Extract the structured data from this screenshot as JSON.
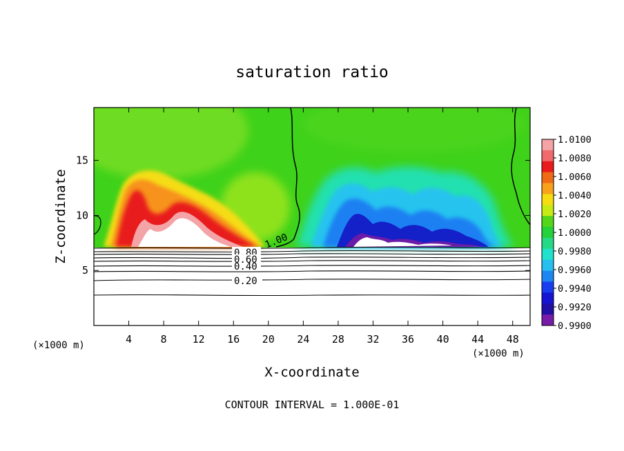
{
  "chart_data": {
    "type": "heatmap",
    "title": "saturation ratio",
    "xlabel": "X-coordinate",
    "ylabel": "Z-coordinate",
    "x_unit_left": "(×1000 m)",
    "x_unit_right": "(×1000 m)",
    "xlim": [
      0,
      50
    ],
    "ylim": [
      0,
      19.8
    ],
    "x_ticks": [
      4,
      8,
      12,
      16,
      20,
      24,
      28,
      32,
      36,
      40,
      44,
      48
    ],
    "y_ticks": [
      5,
      10,
      15
    ],
    "colorbar": {
      "min": 0.99,
      "max": 1.01,
      "labels": [
        "1.0100",
        "1.0080",
        "1.0060",
        "1.0040",
        "1.0020",
        "1.0000",
        "0.9980",
        "0.9960",
        "0.9940",
        "0.9920",
        "0.9900"
      ],
      "colors": [
        "#f4a3a6",
        "#f06a6d",
        "#e81c1c",
        "#f06b16",
        "#f7a21a",
        "#f5dd12",
        "#c6ea14",
        "#54d61a",
        "#24d23c",
        "#26d987",
        "#21e2cc",
        "#26bff0",
        "#1e86f2",
        "#183df0",
        "#1414d2",
        "#2010a5",
        "#761ca8"
      ]
    },
    "contour_labels": [
      "1.00",
      "0.80",
      "0.60",
      "0.40",
      "0.20"
    ],
    "footer": "CONTOUR INTERVAL = 1.000E-01"
  }
}
